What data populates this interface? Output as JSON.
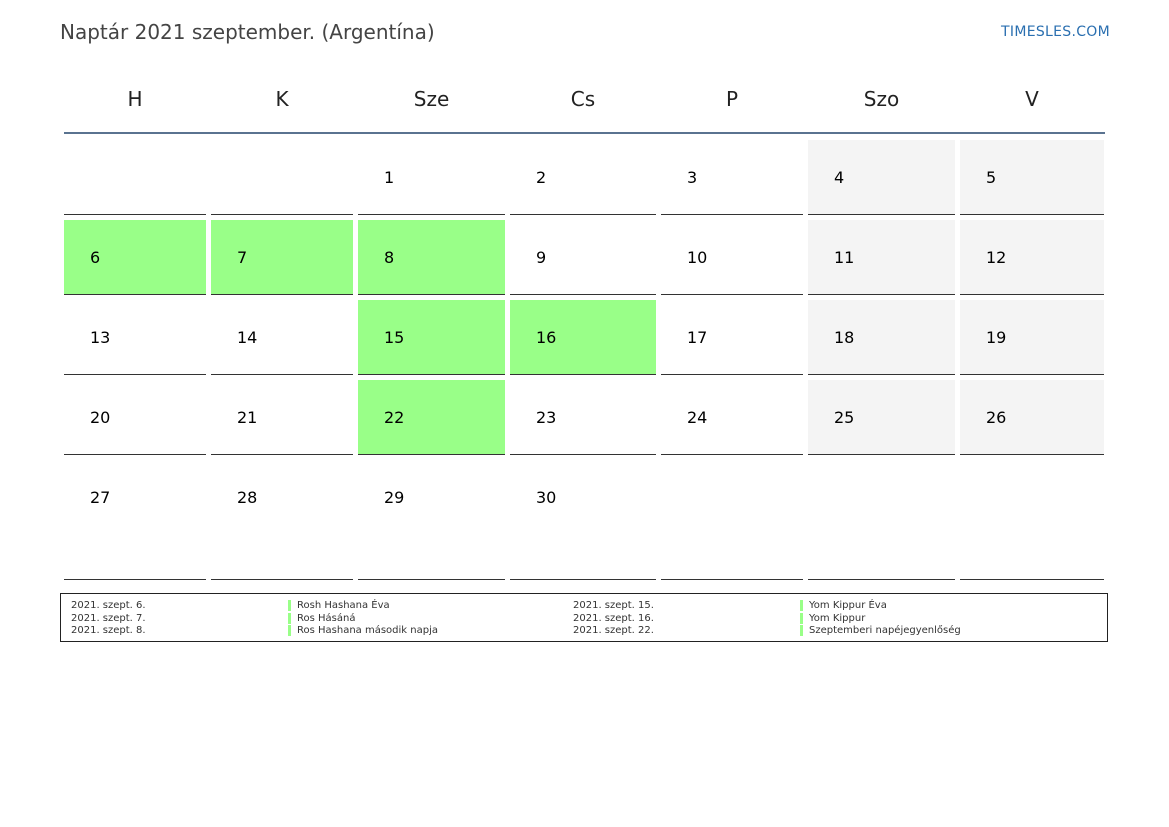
{
  "header": {
    "title": "Naptár 2021 szeptember. (Argentína)",
    "site": "TIMESLES.COM"
  },
  "colors": {
    "holiday": "#99ff88",
    "weekend": "#f4f4f4",
    "header_rule": "#5a7390",
    "link": "#2a6fb0"
  },
  "weekdays": [
    "H",
    "K",
    "Sze",
    "Cs",
    "P",
    "Szo",
    "V"
  ],
  "weeks": [
    [
      {
        "d": "",
        "t": ""
      },
      {
        "d": "",
        "t": ""
      },
      {
        "d": "1",
        "t": ""
      },
      {
        "d": "2",
        "t": ""
      },
      {
        "d": "3",
        "t": ""
      },
      {
        "d": "4",
        "t": "weekend"
      },
      {
        "d": "5",
        "t": "weekend"
      }
    ],
    [
      {
        "d": "6",
        "t": "holiday"
      },
      {
        "d": "7",
        "t": "holiday"
      },
      {
        "d": "8",
        "t": "holiday"
      },
      {
        "d": "9",
        "t": ""
      },
      {
        "d": "10",
        "t": ""
      },
      {
        "d": "11",
        "t": "weekend"
      },
      {
        "d": "12",
        "t": "weekend"
      }
    ],
    [
      {
        "d": "13",
        "t": ""
      },
      {
        "d": "14",
        "t": ""
      },
      {
        "d": "15",
        "t": "holiday"
      },
      {
        "d": "16",
        "t": "holiday"
      },
      {
        "d": "17",
        "t": ""
      },
      {
        "d": "18",
        "t": "weekend"
      },
      {
        "d": "19",
        "t": "weekend"
      }
    ],
    [
      {
        "d": "20",
        "t": ""
      },
      {
        "d": "21",
        "t": ""
      },
      {
        "d": "22",
        "t": "holiday"
      },
      {
        "d": "23",
        "t": ""
      },
      {
        "d": "24",
        "t": ""
      },
      {
        "d": "25",
        "t": "weekend"
      },
      {
        "d": "26",
        "t": "weekend"
      }
    ],
    [
      {
        "d": "27",
        "t": ""
      },
      {
        "d": "28",
        "t": ""
      },
      {
        "d": "29",
        "t": ""
      },
      {
        "d": "30",
        "t": ""
      },
      {
        "d": "",
        "t": ""
      },
      {
        "d": "",
        "t": ""
      },
      {
        "d": "",
        "t": ""
      }
    ]
  ],
  "holidays": [
    {
      "date": "2021. szept. 6.",
      "name": "Rosh Hashana Éva"
    },
    {
      "date": "2021. szept. 7.",
      "name": "Ros Hásáná"
    },
    {
      "date": "2021. szept. 8.",
      "name": "Ros Hashana második napja"
    },
    {
      "date": "2021. szept. 15.",
      "name": "Yom Kippur Éva"
    },
    {
      "date": "2021. szept. 16.",
      "name": "Yom Kippur"
    },
    {
      "date": "2021. szept. 22.",
      "name": "Szeptemberi napéjegyenlőség"
    }
  ]
}
